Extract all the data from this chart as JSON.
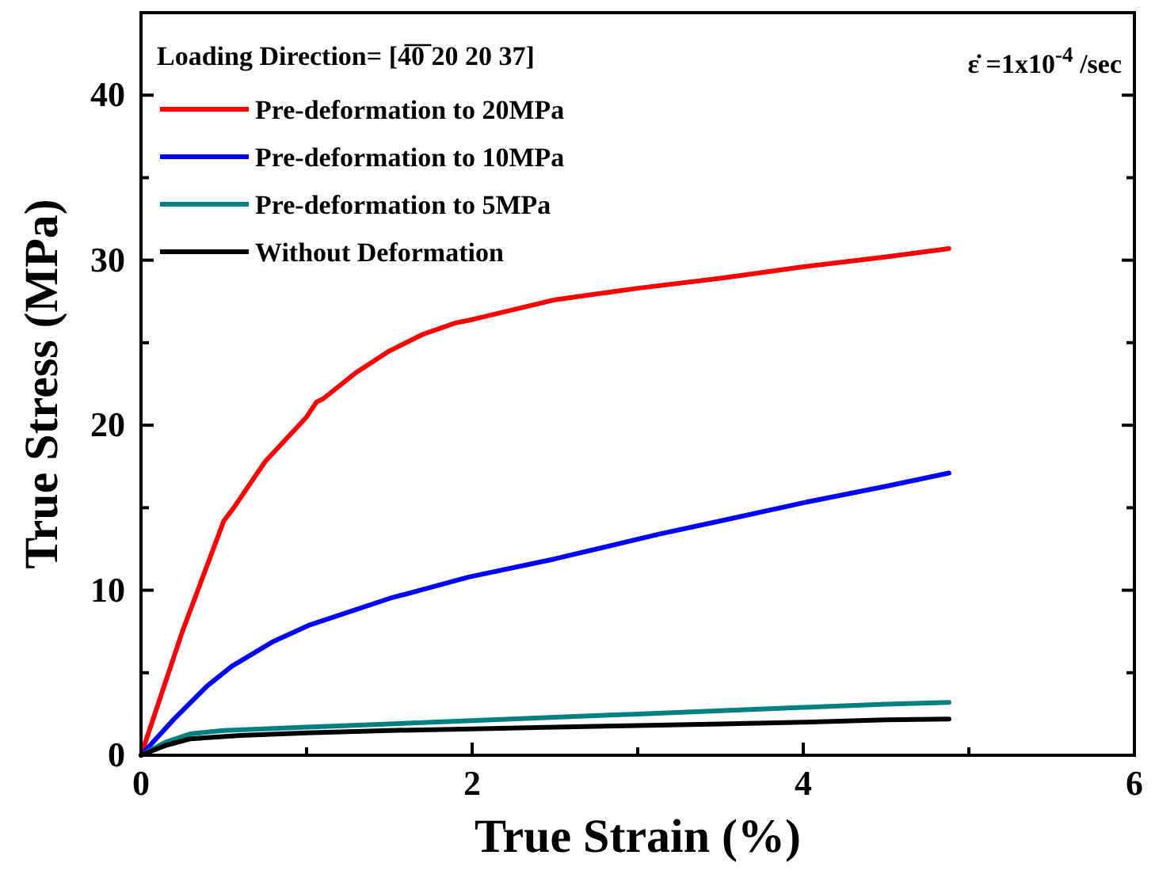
{
  "chart_data": {
    "type": "line",
    "xlabel": "True Strain (%)",
    "ylabel": "True Stress (MPa)",
    "legend_title": "Loading Direction= [4̅0̅ 20 20 37]",
    "annotations": [
      "ε̇ =1x10$^{-4}$ /sec"
    ],
    "xlim": [
      0,
      6
    ],
    "ylim": [
      0,
      45
    ],
    "xticks": [
      0,
      {
        "value": 1,
        "label": null
      },
      2,
      {
        "value": 3,
        "label": null
      },
      4,
      {
        "value": 5,
        "label": null
      },
      6
    ],
    "yticks": [
      0,
      {
        "value": 5,
        "label": null
      },
      10,
      {
        "value": 15,
        "label": null
      },
      20,
      {
        "value": 25,
        "label": null
      },
      30,
      {
        "value": 35,
        "label": null
      },
      40
    ],
    "grid": false,
    "legend": "top left",
    "marker": "none",
    "line_style": "solid",
    "series": [
      {
        "name": "Pre-deformation to 20MPa",
        "color": "#ff0000",
        "x": [
          0,
          0.25,
          0.5,
          0.56,
          0.75,
          1.0,
          1.06,
          1.1,
          1.3,
          1.5,
          1.7,
          1.9,
          2.0,
          2.5,
          3.0,
          3.5,
          4.0,
          4.5,
          4.88
        ],
        "values": [
          0,
          7.5,
          14.2,
          15.0,
          17.8,
          20.5,
          21.4,
          21.6,
          23.2,
          24.5,
          25.5,
          26.2,
          26.4,
          27.6,
          28.3,
          28.9,
          29.6,
          30.2,
          30.7
        ]
      },
      {
        "name": "Pre-deformation to 10MPa",
        "color": "#0000ff",
        "x": [
          0,
          0.2,
          0.4,
          0.55,
          0.8,
          1.02,
          1.5,
          1.98,
          2.5,
          3.13,
          3.5,
          4.0,
          4.5,
          4.88
        ],
        "values": [
          0,
          2.2,
          4.2,
          5.4,
          6.9,
          7.9,
          9.5,
          10.8,
          11.9,
          13.4,
          14.2,
          15.3,
          16.3,
          17.1
        ]
      },
      {
        "name": "Pre-deformation to 5MPa",
        "color": "#008080",
        "x": [
          0,
          0.15,
          0.3,
          0.5,
          1.0,
          1.5,
          2.0,
          2.5,
          3.0,
          3.5,
          4.0,
          4.5,
          4.88
        ],
        "values": [
          0,
          0.8,
          1.3,
          1.5,
          1.7,
          1.9,
          2.1,
          2.3,
          2.5,
          2.7,
          2.9,
          3.1,
          3.2
        ]
      },
      {
        "name": "Without Deformation",
        "color": "#000000",
        "x": [
          0,
          0.15,
          0.3,
          0.6,
          1.0,
          1.5,
          2.0,
          2.5,
          3.0,
          3.5,
          4.0,
          4.5,
          4.88
        ],
        "values": [
          0,
          0.6,
          1.0,
          1.2,
          1.35,
          1.5,
          1.6,
          1.7,
          1.8,
          1.9,
          2.0,
          2.15,
          2.2
        ]
      }
    ]
  }
}
